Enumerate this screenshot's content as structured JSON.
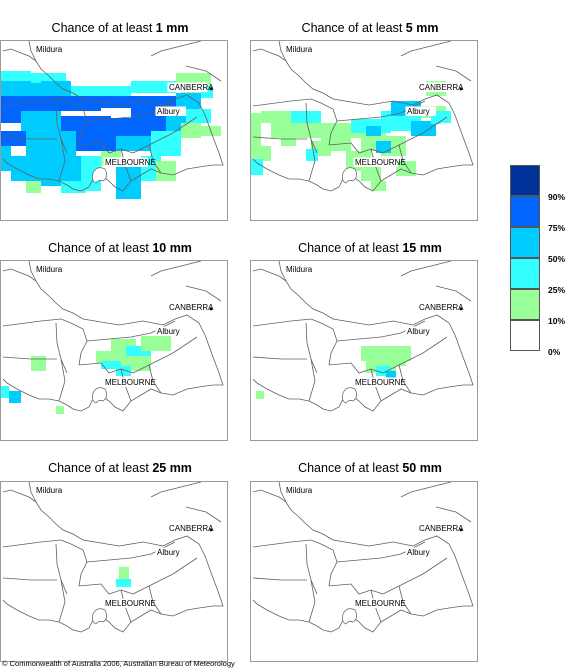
{
  "panels": [
    {
      "prefix": "Chance of at least ",
      "amount": "1 mm"
    },
    {
      "prefix": "Chance of at least ",
      "amount": "5 mm"
    },
    {
      "prefix": "Chance of at least ",
      "amount": "10 mm"
    },
    {
      "prefix": "Chance of at least ",
      "amount": "15 mm"
    },
    {
      "prefix": "Chance of at least ",
      "amount": "25 mm"
    },
    {
      "prefix": "Chance of at least ",
      "amount": "50 mm"
    }
  ],
  "places": {
    "mildura": "Mildura",
    "canberra": "CANBERRA",
    "albury": "Albury",
    "melbourne": "MELBOURNE"
  },
  "legend": {
    "labels": [
      "90%",
      "75%",
      "50%",
      "25%",
      "10%",
      "0%"
    ],
    "colors": [
      "#003399",
      "#0066ff",
      "#00ccff",
      "#33ffff",
      "#99ff99",
      "#ffffff"
    ]
  },
  "copyright": "© Commonwealth of Australia 2006, Australian Bureau of Meteorology"
}
